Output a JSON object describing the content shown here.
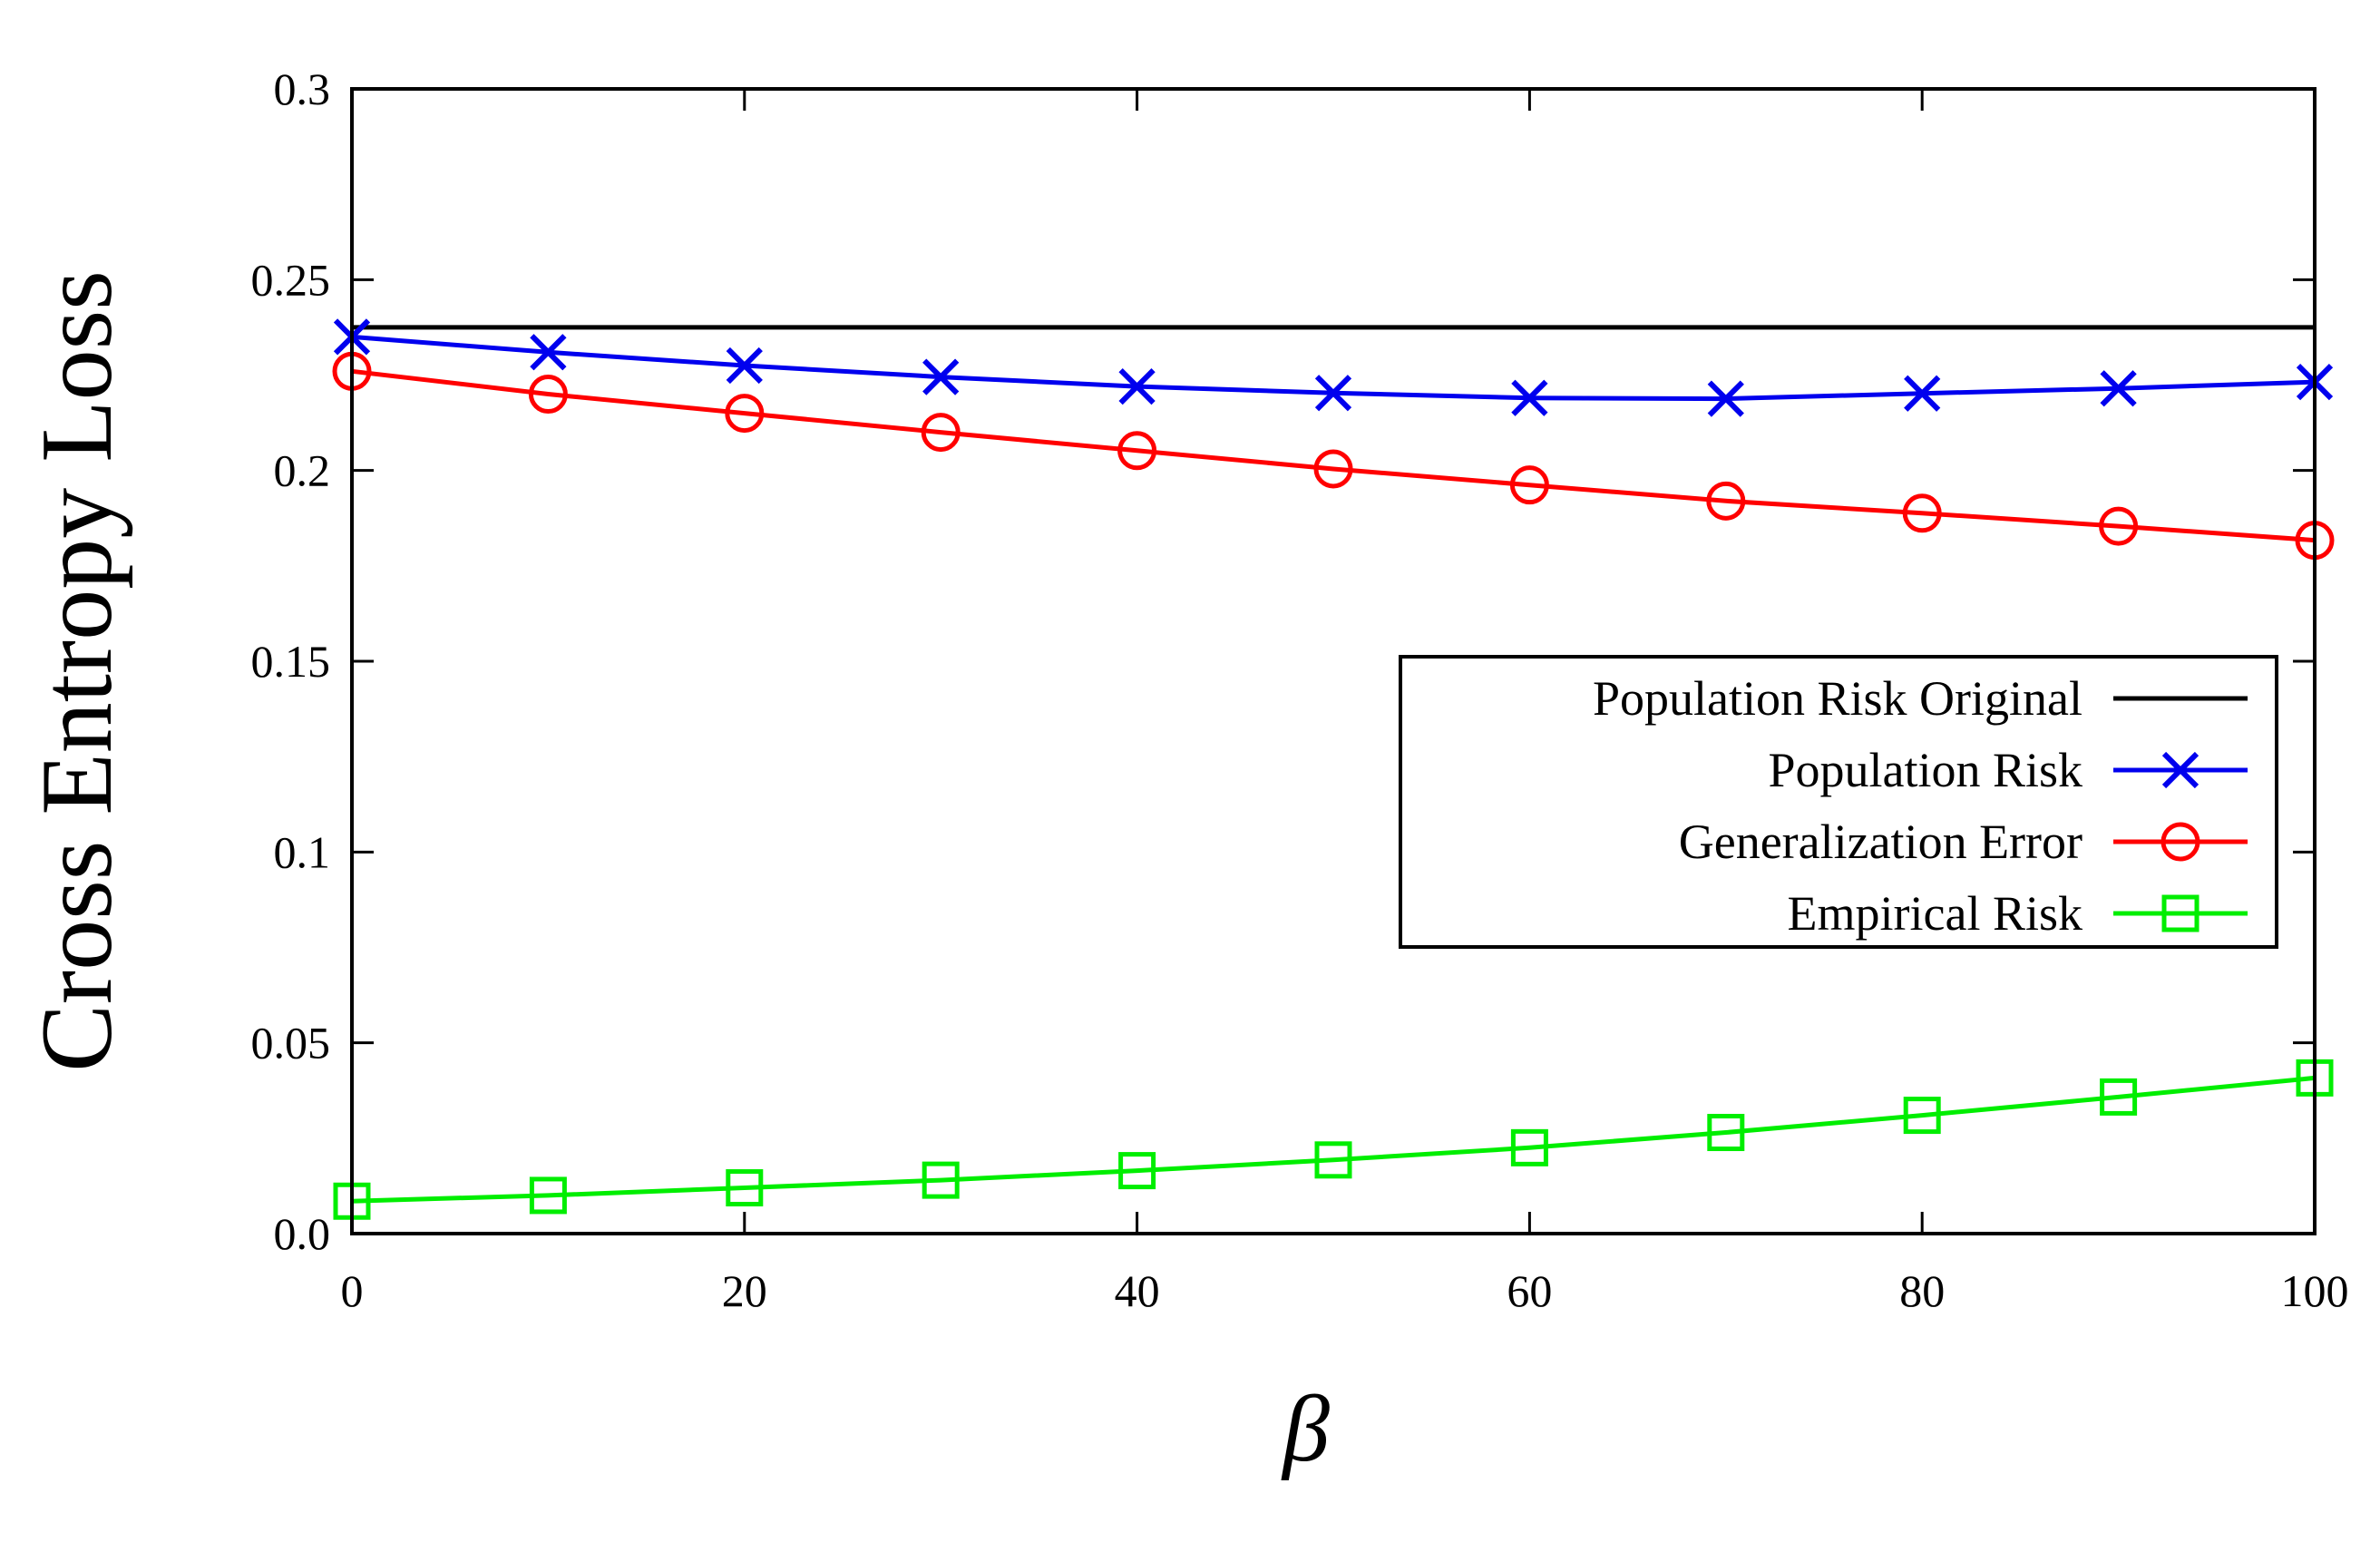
{
  "chart_data": {
    "type": "line",
    "title": "",
    "xlabel": "β",
    "ylabel": "Cross Entropy Loss",
    "xlim": [
      0,
      100
    ],
    "ylim": [
      0,
      0.3
    ],
    "x_ticks": [
      0,
      20,
      40,
      60,
      80,
      100
    ],
    "x_tick_labels": [
      "0",
      "20",
      "40",
      "60",
      "80",
      "100"
    ],
    "y_ticks": [
      0,
      0.05,
      0.1,
      0.15,
      0.2,
      0.25,
      0.3
    ],
    "y_tick_labels": [
      "0.0",
      "0.05",
      "0.1",
      "0.15",
      "0.2",
      "0.25",
      "0.3"
    ],
    "grid": false,
    "legend_position": "center-right",
    "x": [
      0,
      10,
      20,
      30,
      40,
      50,
      60,
      70,
      80,
      90,
      100
    ],
    "series": [
      {
        "name": "Population Risk Original",
        "color": "#000000",
        "marker": "none",
        "values": [
          0.2375,
          0.2375,
          0.2375,
          0.2375,
          0.2375,
          0.2375,
          0.2375,
          0.2375,
          0.2375,
          0.2375,
          0.2375
        ]
      },
      {
        "name": "Population Risk",
        "color": "#0000ee",
        "marker": "x",
        "values": [
          0.235,
          0.231,
          0.2275,
          0.2245,
          0.222,
          0.2203,
          0.219,
          0.2188,
          0.2202,
          0.2215,
          0.2232
        ]
      },
      {
        "name": "Generalization Error",
        "color": "#ff0000",
        "marker": "circle",
        "values": [
          0.226,
          0.22,
          0.215,
          0.21,
          0.2052,
          0.2004,
          0.1962,
          0.192,
          0.1888,
          0.1854,
          0.1817
        ]
      },
      {
        "name": "Empirical Risk",
        "color": "#00ee00",
        "marker": "square",
        "values": [
          0.0085,
          0.01,
          0.012,
          0.014,
          0.0165,
          0.0193,
          0.0225,
          0.0265,
          0.031,
          0.0358,
          0.0408
        ]
      }
    ]
  }
}
